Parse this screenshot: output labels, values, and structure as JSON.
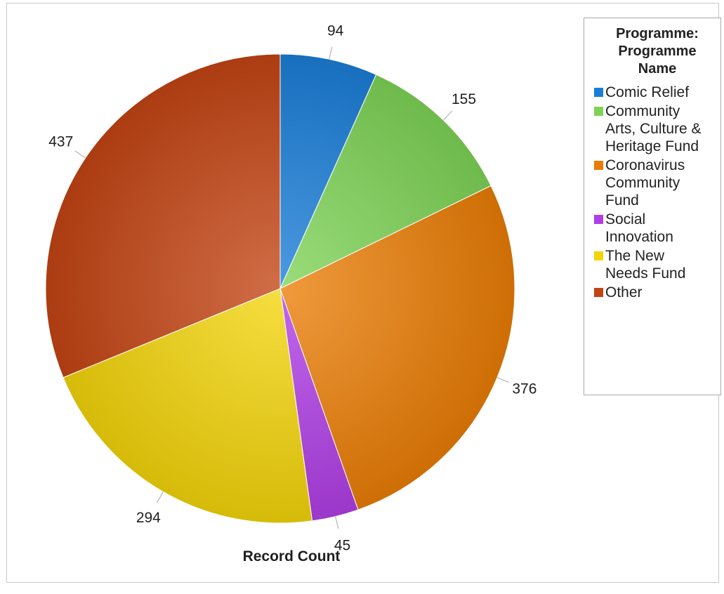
{
  "chart_data": {
    "type": "pie",
    "title": "Record Count",
    "legend_title": "Programme: Programme Name",
    "legend_position": "right",
    "slices": [
      {
        "label": "Comic Relief",
        "value": 94,
        "color": "#1a7ed8"
      },
      {
        "label": "Community Arts, Culture & Heritage Fund",
        "value": 155,
        "color": "#7ed356"
      },
      {
        "label": "Coronavirus Community Fund",
        "value": 376,
        "color": "#ea7d06"
      },
      {
        "label": "Social Innovation",
        "value": 45,
        "color": "#b03ee6"
      },
      {
        "label": "The New Needs Fund",
        "value": 294,
        "color": "#f3d50a"
      },
      {
        "label": "Other",
        "value": 437,
        "color": "#c34413"
      }
    ]
  }
}
